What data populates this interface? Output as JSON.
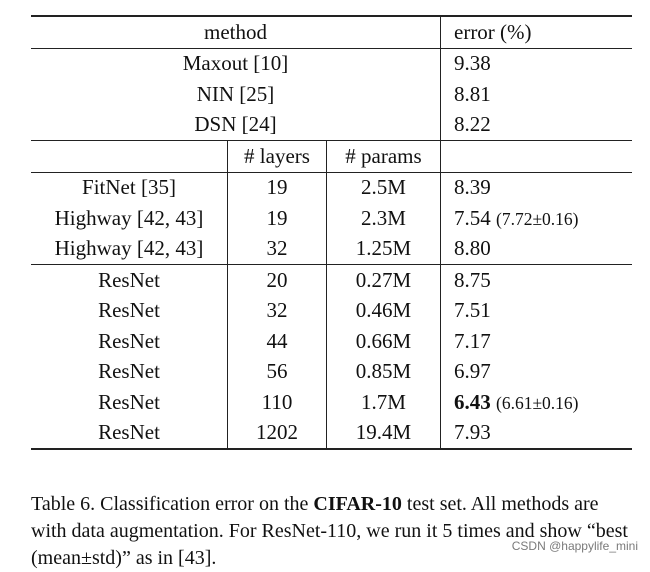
{
  "table": {
    "header_top": {
      "method": "method",
      "error": "error (%)"
    },
    "group1": [
      {
        "method": "Maxout [10]",
        "error": "9.38"
      },
      {
        "method": "NIN [25]",
        "error": "8.81"
      },
      {
        "method": "DSN [24]",
        "error": "8.22"
      }
    ],
    "header_mid": {
      "layers": "# layers",
      "params": "# params"
    },
    "group2": [
      {
        "method": "FitNet [35]",
        "layers": "19",
        "params": "2.5M",
        "error": "8.39",
        "detail": ""
      },
      {
        "method": "Highway [42, 43]",
        "layers": "19",
        "params": "2.3M",
        "error": "7.54",
        "detail": "(7.72±0.16)"
      },
      {
        "method": "Highway [42, 43]",
        "layers": "32",
        "params": "1.25M",
        "error": "8.80",
        "detail": ""
      }
    ],
    "group3": [
      {
        "method": "ResNet",
        "layers": "20",
        "params": "0.27M",
        "error": "8.75",
        "detail": ""
      },
      {
        "method": "ResNet",
        "layers": "32",
        "params": "0.46M",
        "error": "7.51",
        "detail": ""
      },
      {
        "method": "ResNet",
        "layers": "44",
        "params": "0.66M",
        "error": "7.17",
        "detail": ""
      },
      {
        "method": "ResNet",
        "layers": "56",
        "params": "0.85M",
        "error": "6.97",
        "detail": ""
      },
      {
        "method": "ResNet",
        "layers": "110",
        "params": "1.7M",
        "error": "6.43",
        "detail": "(6.61±0.16)",
        "best": true
      },
      {
        "method": "ResNet",
        "layers": "1202",
        "params": "19.4M",
        "error": "7.93",
        "detail": ""
      }
    ]
  },
  "caption": {
    "prefix": "Table 6. Classification error on the ",
    "bold": "CIFAR-10",
    "suffix": " test set. All methods are with data augmentation. For ResNet-110, we run it 5 times and show “best (mean±std)” as in [43]."
  },
  "watermark": "CSDN @happylife_mini"
}
